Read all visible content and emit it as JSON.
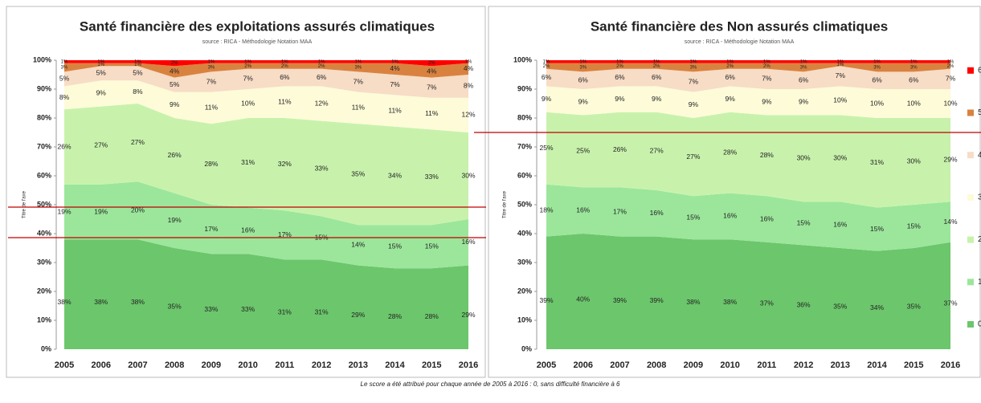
{
  "chart_data": [
    {
      "type": "stacked_area",
      "title": "Santé financière des exploitations assurés climatiques",
      "subtitle": "source : RICA - Méthodologie Notation MAA",
      "y_label": "Titre de l'axe",
      "categories": [
        "2005",
        "2006",
        "2007",
        "2008",
        "2009",
        "2010",
        "2011",
        "2012",
        "2013",
        "2014",
        "2015",
        "2016"
      ],
      "ylim": [
        0,
        100
      ],
      "yticks": [
        {
          "value": 0,
          "label": "0%"
        },
        {
          "value": 10,
          "label": "10%"
        },
        {
          "value": 20,
          "label": "20%"
        },
        {
          "value": 30,
          "label": "30%"
        },
        {
          "value": 40,
          "label": "40%"
        },
        {
          "value": 50,
          "label": "50%"
        },
        {
          "value": 60,
          "label": "60%"
        },
        {
          "value": 70,
          "label": "70%"
        },
        {
          "value": 80,
          "label": "80%"
        },
        {
          "value": 90,
          "label": "90%"
        },
        {
          "value": 100,
          "label": "100%"
        }
      ],
      "series": [
        {
          "name": "0",
          "color": "#6cc66c",
          "values": [
            38,
            38,
            38,
            35,
            33,
            33,
            31,
            31,
            29,
            28,
            28,
            29
          ],
          "value_labels": [
            "38%",
            "38%",
            "38%",
            "35%",
            "33%",
            "33%",
            "31%",
            "31%",
            "29%",
            "28%",
            "28%",
            "29%"
          ]
        },
        {
          "name": "1",
          "color": "#9be69b",
          "values": [
            19,
            19,
            20,
            19,
            17,
            16,
            17,
            15,
            14,
            15,
            15,
            16
          ],
          "value_labels": [
            "19%",
            "19%",
            "20%",
            "19%",
            "17%",
            "16%",
            "17%",
            "15%",
            "14%",
            "15%",
            "15%",
            "16%"
          ]
        },
        {
          "name": "2",
          "color": "#c8f2ac",
          "values": [
            26,
            27,
            27,
            26,
            28,
            31,
            32,
            33,
            35,
            34,
            33,
            30
          ],
          "value_labels": [
            "26%",
            "27%",
            "27%",
            "26%",
            "28%",
            "31%",
            "32%",
            "33%",
            "35%",
            "34%",
            "33%",
            "30%"
          ]
        },
        {
          "name": "3",
          "color": "#fdfbd8",
          "values": [
            8,
            9,
            8,
            9,
            11,
            10,
            11,
            12,
            11,
            11,
            11,
            12
          ],
          "value_labels": [
            "8%",
            "9%",
            "8%",
            "9%",
            "11%",
            "10%",
            "11%",
            "12%",
            "11%",
            "11%",
            "11%",
            "12%"
          ]
        },
        {
          "name": "4",
          "color": "#f7dcc6",
          "values": [
            5,
            5,
            5,
            5,
            7,
            7,
            6,
            6,
            7,
            7,
            7,
            8
          ],
          "value_labels": [
            "5%",
            "5%",
            "5%",
            "5%",
            "7%",
            "7%",
            "6%",
            "6%",
            "7%",
            "7%",
            "7%",
            "8%"
          ]
        },
        {
          "name": "5",
          "color": "#d9823f",
          "values": [
            3,
            1,
            1,
            4,
            3,
            2,
            2,
            2,
            3,
            4,
            4,
            4
          ],
          "value_labels": [
            "3%",
            "1%",
            "1%",
            "4%",
            "3%",
            "2%",
            "2%",
            "2%",
            "3%",
            "4%",
            "4%",
            "4%"
          ]
        },
        {
          "name": "6",
          "color": "#ff0000",
          "values": [
            1,
            1,
            1,
            2,
            1,
            1,
            1,
            1,
            1,
            1,
            2,
            1
          ],
          "value_labels": [
            "1%",
            "1%",
            "1%",
            "2%",
            "1%",
            "1%",
            "1%",
            "1%",
            "1%",
            "1%",
            "2%",
            "1%"
          ]
        }
      ]
    },
    {
      "type": "stacked_area",
      "title": "Santé financière des Non assurés climatiques",
      "subtitle": "source : RICA - Méthodologie Notation MAA",
      "y_label": "Titre de l'axe",
      "legend": "right",
      "categories": [
        "2005",
        "2006",
        "2007",
        "2008",
        "2009",
        "2010",
        "2011",
        "2012",
        "2013",
        "2014",
        "2015",
        "2016"
      ],
      "ylim": [
        0,
        100
      ],
      "yticks": [
        {
          "value": 0,
          "label": "0%"
        },
        {
          "value": 10,
          "label": "10%"
        },
        {
          "value": 20,
          "label": "20%"
        },
        {
          "value": 30,
          "label": "30%"
        },
        {
          "value": 40,
          "label": "40%"
        },
        {
          "value": 50,
          "label": "50%"
        },
        {
          "value": 60,
          "label": "60%"
        },
        {
          "value": 70,
          "label": "70%"
        },
        {
          "value": 80,
          "label": "80%"
        },
        {
          "value": 90,
          "label": "90%"
        },
        {
          "value": 100,
          "label": "100%"
        }
      ],
      "series": [
        {
          "name": "0",
          "color": "#6cc66c",
          "values": [
            39,
            40,
            39,
            39,
            38,
            38,
            37,
            36,
            35,
            34,
            35,
            37
          ],
          "value_labels": [
            "39%",
            "40%",
            "39%",
            "39%",
            "38%",
            "38%",
            "37%",
            "36%",
            "35%",
            "34%",
            "35%",
            "37%"
          ]
        },
        {
          "name": "1",
          "color": "#9be69b",
          "values": [
            18,
            16,
            17,
            16,
            15,
            16,
            16,
            15,
            16,
            15,
            15,
            14
          ],
          "value_labels": [
            "18%",
            "16%",
            "17%",
            "16%",
            "15%",
            "16%",
            "16%",
            "15%",
            "16%",
            "15%",
            "15%",
            "14%"
          ]
        },
        {
          "name": "2",
          "color": "#c8f2ac",
          "values": [
            25,
            25,
            26,
            27,
            27,
            28,
            28,
            30,
            30,
            31,
            30,
            29
          ],
          "value_labels": [
            "25%",
            "25%",
            "26%",
            "27%",
            "27%",
            "28%",
            "28%",
            "30%",
            "30%",
            "31%",
            "30%",
            "29%"
          ]
        },
        {
          "name": "3",
          "color": "#fdfbd8",
          "values": [
            9,
            9,
            9,
            9,
            9,
            9,
            9,
            9,
            10,
            10,
            10,
            10
          ],
          "value_labels": [
            "9%",
            "9%",
            "9%",
            "9%",
            "9%",
            "9%",
            "9%",
            "9%",
            "10%",
            "10%",
            "10%",
            "10%"
          ]
        },
        {
          "name": "4",
          "color": "#f7dcc6",
          "values": [
            6,
            6,
            6,
            6,
            7,
            6,
            7,
            6,
            7,
            6,
            6,
            7
          ],
          "value_labels": [
            "6%",
            "6%",
            "6%",
            "6%",
            "7%",
            "6%",
            "7%",
            "6%",
            "7%",
            "6%",
            "6%",
            "7%"
          ]
        },
        {
          "name": "5",
          "color": "#d9823f",
          "values": [
            2,
            3,
            2,
            2,
            3,
            2,
            2,
            3,
            1,
            3,
            3,
            2
          ],
          "value_labels": [
            "2%",
            "3%",
            "2%",
            "2%",
            "3%",
            "2%",
            "2%",
            "3%",
            "1%",
            "3%",
            "3%",
            "2%"
          ]
        },
        {
          "name": "6",
          "color": "#ff0000",
          "values": [
            1,
            1,
            1,
            1,
            1,
            1,
            1,
            1,
            1,
            1,
            1,
            1
          ],
          "value_labels": [
            "1%",
            "1%",
            "1%",
            "1%",
            "1%",
            "1%",
            "1%",
            "1%",
            "1%",
            "1%",
            "1%",
            "1%"
          ]
        }
      ]
    }
  ],
  "caption": "Le score a été attribué pour chaque année de 2005 à 2016 : 0, sans difficulté financière à 6"
}
